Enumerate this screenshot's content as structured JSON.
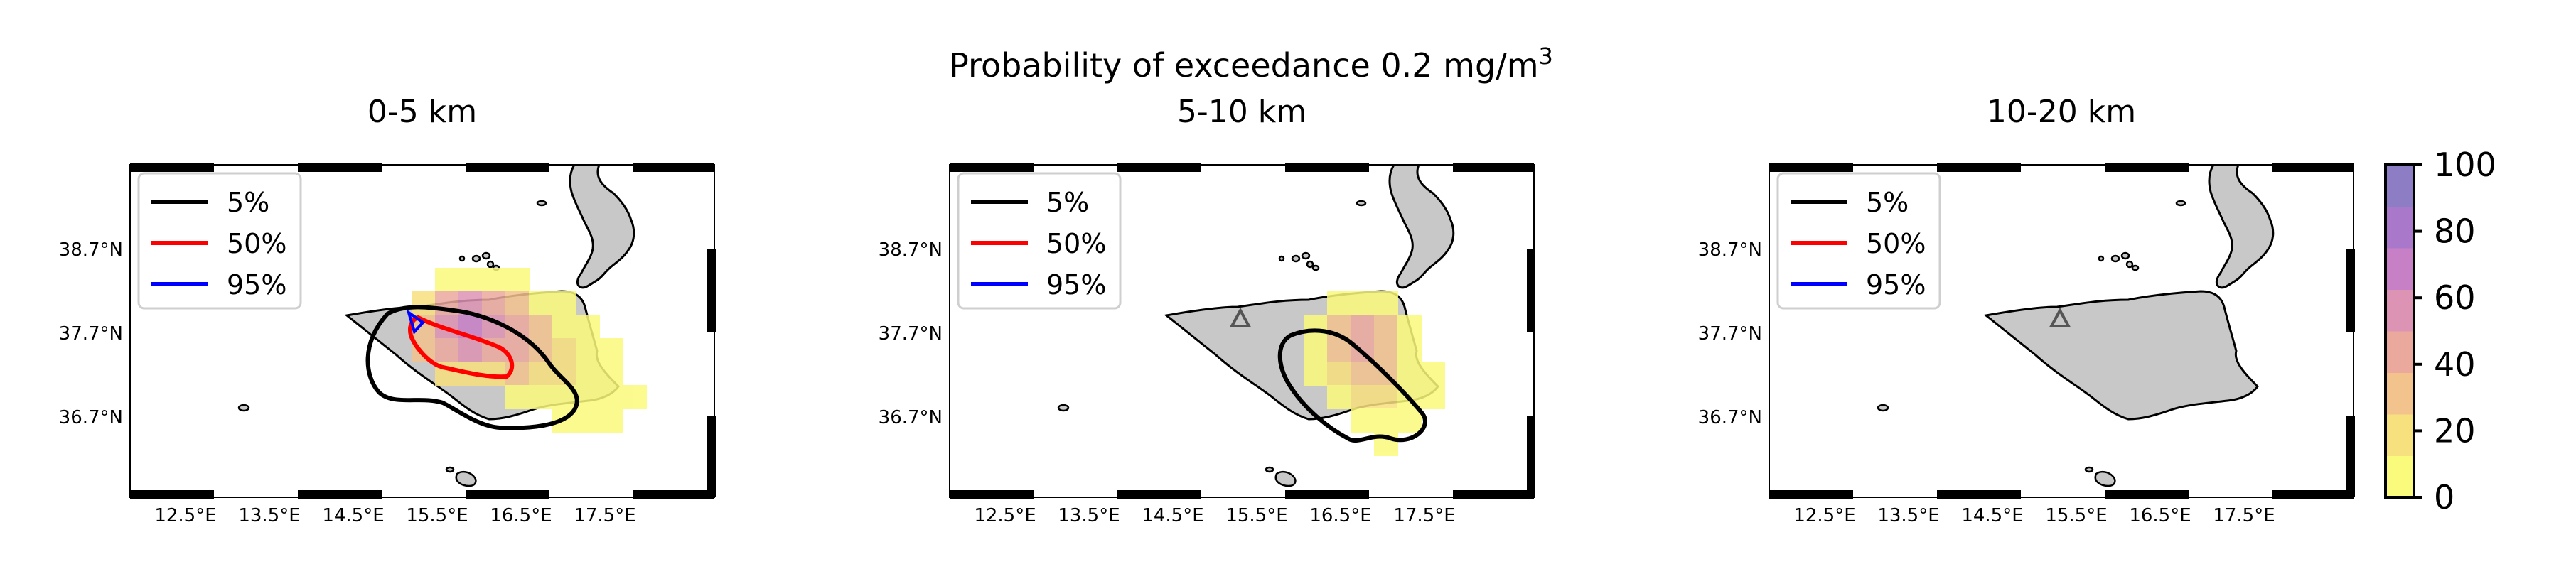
{
  "figure": {
    "title_line1": "Probability of exceedance 0.2 mg/m",
    "title_sup": "3"
  },
  "panels": [
    {
      "title": "0-5 km",
      "legend": [
        "5%",
        "50%",
        "95%"
      ],
      "has_plume": true,
      "show_volcano": false
    },
    {
      "title": "5-10 km",
      "legend": [
        "5%",
        "50%",
        "95%"
      ],
      "has_plume": true,
      "show_volcano": true
    },
    {
      "title": "10-20 km",
      "legend": [
        "5%",
        "50%",
        "95%"
      ],
      "has_plume": false,
      "show_volcano": true
    }
  ],
  "axes": {
    "lon_ticks": [
      "12.5°E",
      "13.5°E",
      "14.5°E",
      "15.5°E",
      "16.5°E",
      "17.5°E"
    ],
    "lat_ticks": [
      "38.7°N",
      "37.7°N",
      "36.7°N"
    ]
  },
  "legend_colors": {
    "5%": "#000000",
    "50%": "#ff0000",
    "95%": "#0000ff"
  },
  "colorbar": {
    "ticks": [
      "0",
      "20",
      "40",
      "60",
      "80",
      "100"
    ],
    "min": 0,
    "max": 100,
    "colors": [
      "#fafa7c",
      "#f7e07e",
      "#f3c38e",
      "#eba99e",
      "#dc93b4",
      "#c77fc6",
      "#a978cb",
      "#8c7dc4"
    ]
  },
  "map_colors": {
    "land": "#c8c8c8",
    "coast": "#000000",
    "volcano": "#555555"
  }
}
